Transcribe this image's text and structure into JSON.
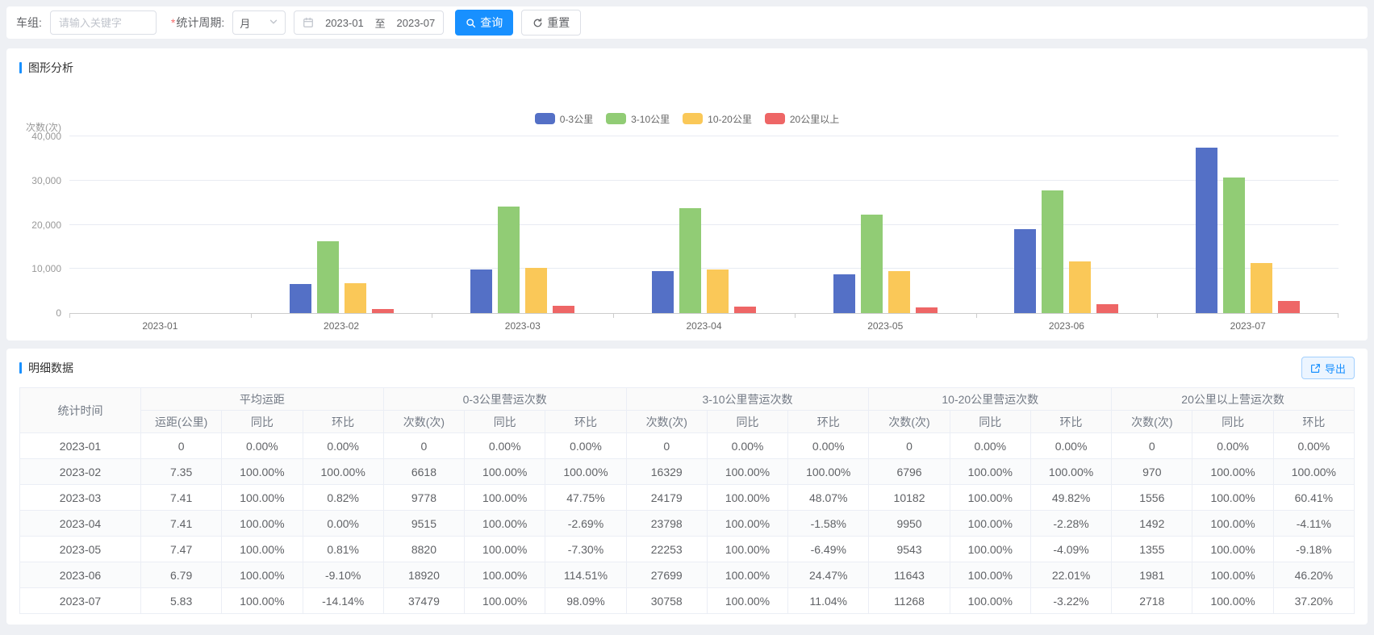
{
  "colors": {
    "primary": "#1890ff"
  },
  "filter": {
    "group_label": "车组:",
    "group_placeholder": "请输入关键字",
    "required_mark": "*",
    "period_label": "统计周期:",
    "period_value": "月",
    "date_start": "2023-01",
    "date_separator": "至",
    "date_end": "2023-07",
    "query_label": "查询",
    "reset_label": "重置"
  },
  "chart_section_title": "图形分析",
  "chart_data": {
    "type": "bar",
    "title": "",
    "ylabel": "次数(次)",
    "xlabel": "",
    "legend_position": "top",
    "grid": true,
    "ylim": [
      0,
      40000
    ],
    "yticks": [
      {
        "value": 0,
        "label": "0"
      },
      {
        "value": 10000,
        "label": "10,000"
      },
      {
        "value": 20000,
        "label": "20,000"
      },
      {
        "value": 30000,
        "label": "30,000"
      },
      {
        "value": 40000,
        "label": "40,000"
      }
    ],
    "categories": [
      "2023-01",
      "2023-02",
      "2023-03",
      "2023-04",
      "2023-05",
      "2023-06",
      "2023-07"
    ],
    "series": [
      {
        "name": "0-3公里",
        "color": "#5470c6",
        "values": [
          0,
          6618,
          9778,
          9515,
          8820,
          18920,
          37479
        ]
      },
      {
        "name": "3-10公里",
        "color": "#91cc75",
        "values": [
          0,
          16329,
          24179,
          23798,
          22253,
          27699,
          30758
        ]
      },
      {
        "name": "10-20公里",
        "color": "#fac858",
        "values": [
          0,
          6796,
          10182,
          9950,
          9543,
          11643,
          11268
        ]
      },
      {
        "name": "20公里以上",
        "color": "#ee6666",
        "values": [
          0,
          970,
          1556,
          1492,
          1355,
          1981,
          2718
        ]
      }
    ]
  },
  "table_section_title": "明细数据",
  "export_label": "导出",
  "table": {
    "time_column": "统计时间",
    "groups": [
      {
        "label": "平均运距",
        "children": [
          "运距(公里)",
          "同比",
          "环比"
        ]
      },
      {
        "label": "0-3公里营运次数",
        "children": [
          "次数(次)",
          "同比",
          "环比"
        ]
      },
      {
        "label": "3-10公里营运次数",
        "children": [
          "次数(次)",
          "同比",
          "环比"
        ]
      },
      {
        "label": "10-20公里营运次数",
        "children": [
          "次数(次)",
          "同比",
          "环比"
        ]
      },
      {
        "label": "20公里以上营运次数",
        "children": [
          "次数(次)",
          "同比",
          "环比"
        ]
      }
    ],
    "rows": [
      [
        "2023-01",
        "0",
        "0.00%",
        "0.00%",
        "0",
        "0.00%",
        "0.00%",
        "0",
        "0.00%",
        "0.00%",
        "0",
        "0.00%",
        "0.00%",
        "0",
        "0.00%",
        "0.00%"
      ],
      [
        "2023-02",
        "7.35",
        "100.00%",
        "100.00%",
        "6618",
        "100.00%",
        "100.00%",
        "16329",
        "100.00%",
        "100.00%",
        "6796",
        "100.00%",
        "100.00%",
        "970",
        "100.00%",
        "100.00%"
      ],
      [
        "2023-03",
        "7.41",
        "100.00%",
        "0.82%",
        "9778",
        "100.00%",
        "47.75%",
        "24179",
        "100.00%",
        "48.07%",
        "10182",
        "100.00%",
        "49.82%",
        "1556",
        "100.00%",
        "60.41%"
      ],
      [
        "2023-04",
        "7.41",
        "100.00%",
        "0.00%",
        "9515",
        "100.00%",
        "-2.69%",
        "23798",
        "100.00%",
        "-1.58%",
        "9950",
        "100.00%",
        "-2.28%",
        "1492",
        "100.00%",
        "-4.11%"
      ],
      [
        "2023-05",
        "7.47",
        "100.00%",
        "0.81%",
        "8820",
        "100.00%",
        "-7.30%",
        "22253",
        "100.00%",
        "-6.49%",
        "9543",
        "100.00%",
        "-4.09%",
        "1355",
        "100.00%",
        "-9.18%"
      ],
      [
        "2023-06",
        "6.79",
        "100.00%",
        "-9.10%",
        "18920",
        "100.00%",
        "114.51%",
        "27699",
        "100.00%",
        "24.47%",
        "11643",
        "100.00%",
        "22.01%",
        "1981",
        "100.00%",
        "46.20%"
      ],
      [
        "2023-07",
        "5.83",
        "100.00%",
        "-14.14%",
        "37479",
        "100.00%",
        "98.09%",
        "30758",
        "100.00%",
        "11.04%",
        "11268",
        "100.00%",
        "-3.22%",
        "2718",
        "100.00%",
        "37.20%"
      ]
    ]
  }
}
